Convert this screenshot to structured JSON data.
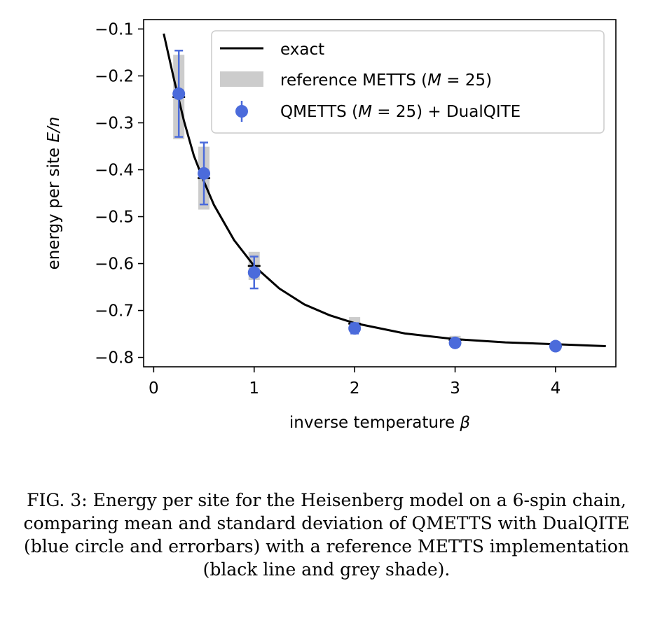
{
  "chart_data": {
    "type": "line",
    "xlabel": "inverse temperature β",
    "ylabel": "energy per site E/n",
    "xlim": [
      -0.1,
      4.6
    ],
    "ylim": [
      -0.82,
      -0.08
    ],
    "x_ticks": [
      0,
      1,
      2,
      3,
      4
    ],
    "x_tick_labels": [
      "0",
      "1",
      "2",
      "3",
      "4"
    ],
    "y_ticks": [
      -0.1,
      -0.2,
      -0.3,
      -0.4,
      -0.5,
      -0.6,
      -0.7,
      -0.8
    ],
    "y_tick_labels": [
      "−0.1",
      "−0.2",
      "−0.3",
      "−0.4",
      "−0.5",
      "−0.6",
      "−0.7",
      "−0.8"
    ],
    "legend_position": "top-right",
    "series": [
      {
        "name": "exact",
        "kind": "line",
        "color": "#000000",
        "x": [
          0.1,
          0.2,
          0.3,
          0.4,
          0.5,
          0.6,
          0.8,
          1.0,
          1.25,
          1.5,
          1.75,
          2.0,
          2.5,
          3.0,
          3.5,
          4.0,
          4.5
        ],
        "y": [
          -0.11,
          -0.205,
          -0.295,
          -0.37,
          -0.425,
          -0.475,
          -0.55,
          -0.605,
          -0.653,
          -0.687,
          -0.71,
          -0.727,
          -0.749,
          -0.761,
          -0.768,
          -0.772,
          -0.776
        ]
      },
      {
        "name": "reference METTS (M = 25)",
        "kind": "shade",
        "color": "#cccccc",
        "x": [
          0.25,
          0.5,
          1.0,
          2.0,
          3.0,
          4.0
        ],
        "mean": [
          -0.245,
          -0.418,
          -0.605,
          -0.728,
          -0.763,
          -0.776
        ],
        "std": [
          0.09,
          0.067,
          0.03,
          0.014,
          0.009,
          0.004
        ]
      },
      {
        "name": "QMETTS (M = 25) + DualQITE",
        "kind": "errorbar",
        "color": "#4b6bdb",
        "x": [
          0.25,
          0.5,
          1.0,
          2.0,
          3.0,
          4.0
        ],
        "y": [
          -0.238,
          -0.408,
          -0.619,
          -0.738,
          -0.769,
          -0.776
        ],
        "yerr": [
          0.092,
          0.066,
          0.034,
          0.011,
          0.005,
          0.004
        ]
      }
    ]
  },
  "legend": {
    "exact": "exact",
    "ref_prefix": "reference METTS (",
    "ref_M": "M",
    "ref_suffix": " = 25)",
    "q_prefix": "QMETTS (",
    "q_M": "M",
    "q_suffix": " = 25) + DualQITE"
  },
  "axis_text": {
    "x_main": "inverse temperature ",
    "x_symbol": "β",
    "y_main": "energy per site ",
    "y_symbol": "E/n"
  },
  "caption": "FIG. 3: Energy per site for the Heisenberg model on a 6-spin chain, comparing mean and standard deviation of QMETTS with DualQITE (blue circle and errorbars) with a reference METTS implementation (black line and grey shade)."
}
